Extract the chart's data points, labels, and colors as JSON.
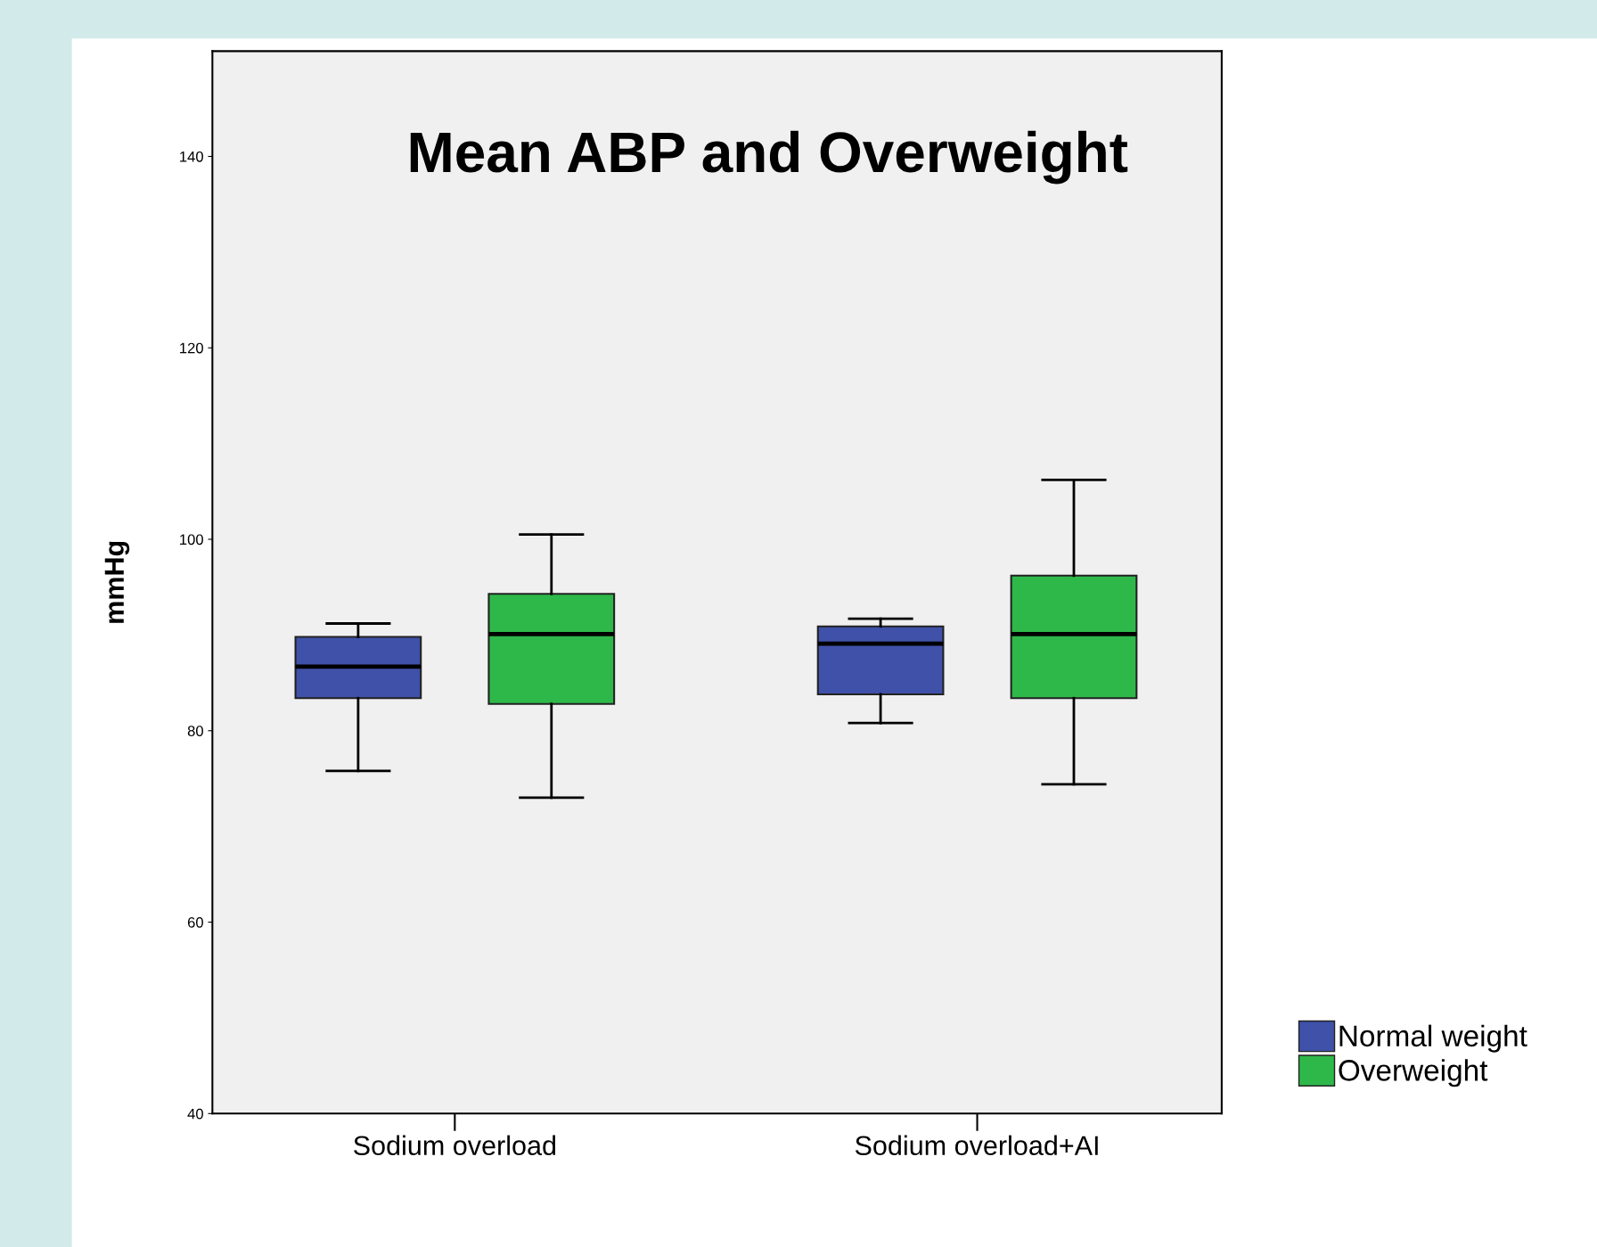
{
  "chart_data": {
    "type": "box",
    "title": "Mean ABP and Overweight",
    "ylabel": "mmHg",
    "categories": [
      "Sodium overload",
      "Sodium overload+AI"
    ],
    "series": [
      {
        "name": "Normal weight",
        "color": "#3f51a8",
        "boxes": [
          {
            "low": 75.8,
            "q1": 83.4,
            "median": 86.7,
            "q3": 89.8,
            "high": 91.2
          },
          {
            "low": 80.8,
            "q1": 83.8,
            "median": 89.1,
            "q3": 90.9,
            "high": 91.7
          }
        ]
      },
      {
        "name": "Overweight",
        "color": "#2eb84a",
        "boxes": [
          {
            "low": 73.0,
            "q1": 82.8,
            "median": 90.1,
            "q3": 94.3,
            "high": 100.5
          },
          {
            "low": 74.4,
            "q1": 83.4,
            "median": 90.1,
            "q3": 96.2,
            "high": 106.2
          }
        ]
      }
    ],
    "ylim": [
      40,
      151
    ],
    "yticks": [
      40,
      60,
      80,
      100,
      120,
      140
    ],
    "grid": false,
    "legend": "bottom right"
  }
}
